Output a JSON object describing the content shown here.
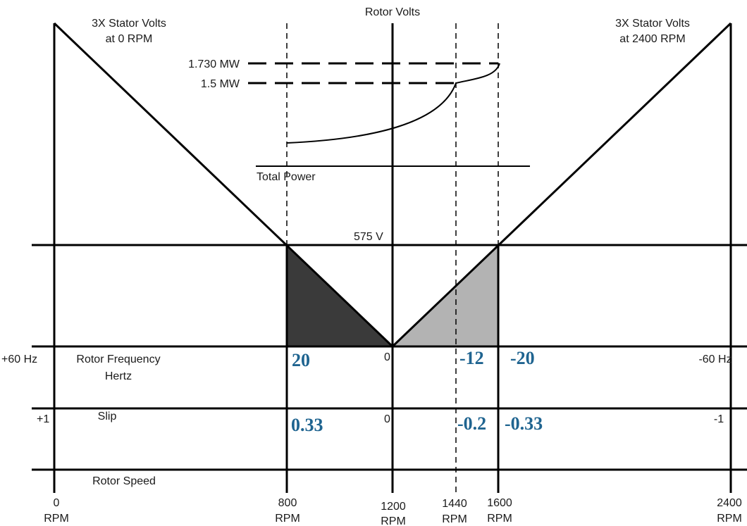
{
  "labels": {
    "stator_left": [
      "3X Stator Volts",
      "at 0 RPM"
    ],
    "stator_right": [
      "3X Stator Volts",
      "at 2400 RPM"
    ],
    "rotor_volts": "Rotor Volts",
    "mw_high": "1.730 MW",
    "mw_low": "1.5 MW",
    "total_power": "Total Power",
    "volts_575": "575 V",
    "rotor_frequency": [
      "Rotor Frequency",
      "Hertz"
    ],
    "slip": "Slip",
    "rotor_speed": "Rotor Speed",
    "hz_plus": "+60 Hz",
    "hz_minus": "-60 Hz",
    "hz_zero": "0",
    "slip_plus": "+1",
    "slip_minus": "-1",
    "slip_zero": "0"
  },
  "rpm_axis": [
    {
      "value": "0",
      "unit": "RPM"
    },
    {
      "value": "800",
      "unit": "RPM"
    },
    {
      "value": "1200",
      "unit": "RPM"
    },
    {
      "value": "1440",
      "unit": "RPM"
    },
    {
      "value": "1600",
      "unit": "RPM"
    },
    {
      "value": "2400",
      "unit": "RPM"
    }
  ],
  "frequency_values": [
    "20",
    "-12",
    "-20"
  ],
  "slip_values": [
    "0.33",
    "-0.2",
    "-0.33"
  ],
  "colors": {
    "subsync_fill": "#3a3a3a",
    "supersync_fill": "#b3b3b3",
    "value_text": "#1f6490"
  }
}
